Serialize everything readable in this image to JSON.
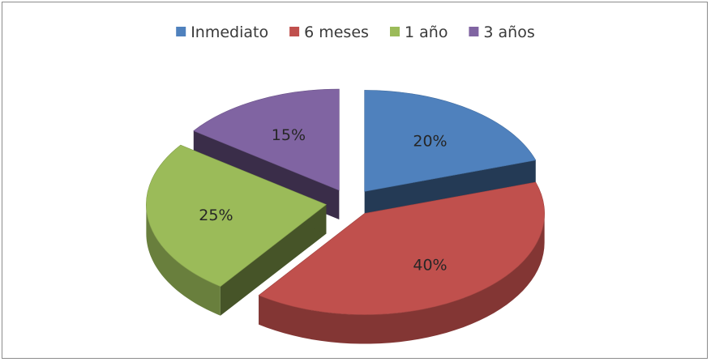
{
  "chart_data": {
    "type": "pie",
    "style": "3d-exploded",
    "categories": [
      "Inmediato",
      "6 meses",
      "1 año",
      "3 años"
    ],
    "values": [
      20,
      40,
      25,
      15
    ],
    "labels": [
      "20%",
      "40%",
      "25%",
      "15%"
    ],
    "colors": [
      "#4f81bd",
      "#c0504d",
      "#9bbb59",
      "#8064a2"
    ],
    "legend_position": "top",
    "title": "",
    "exploded": true
  }
}
